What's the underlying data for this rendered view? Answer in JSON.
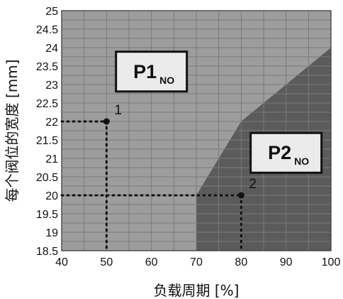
{
  "chart_data": {
    "type": "area",
    "xlabel": "负载周期 [%]",
    "ylabel": "每个阀位的宽度 [mm]",
    "xlim": [
      40,
      100
    ],
    "ylim": [
      18.5,
      25
    ],
    "x_ticks": [
      "40",
      "50",
      "60",
      "70",
      "80",
      "90",
      "100"
    ],
    "y_ticks": [
      "18.5",
      "19",
      "19.5",
      "20",
      "20.5",
      "21",
      "21.5",
      "22",
      "22.5",
      "23",
      "23.5",
      "24",
      "24.5",
      "25"
    ],
    "grid": true,
    "boundary": {
      "x": [
        70,
        80,
        100,
        100,
        70
      ],
      "y": [
        20,
        22,
        24,
        18.5,
        18.5
      ]
    },
    "regions": [
      {
        "label": "P1",
        "subscript": "NO",
        "color": "#9d9d9d",
        "label_at": {
          "x": 60,
          "y": 23.35
        }
      },
      {
        "label": "P2",
        "subscript": "NO",
        "color": "#5b5b5b",
        "label_at": {
          "x": 90,
          "y": 21.15
        }
      }
    ],
    "points": [
      {
        "label": "1",
        "x": 50,
        "y": 22
      },
      {
        "label": "2",
        "x": 80,
        "y": 20
      }
    ]
  },
  "colors": {
    "grid": "#7a7a7a",
    "marker": "#111111",
    "label_box_fill": "#ebebeb"
  }
}
